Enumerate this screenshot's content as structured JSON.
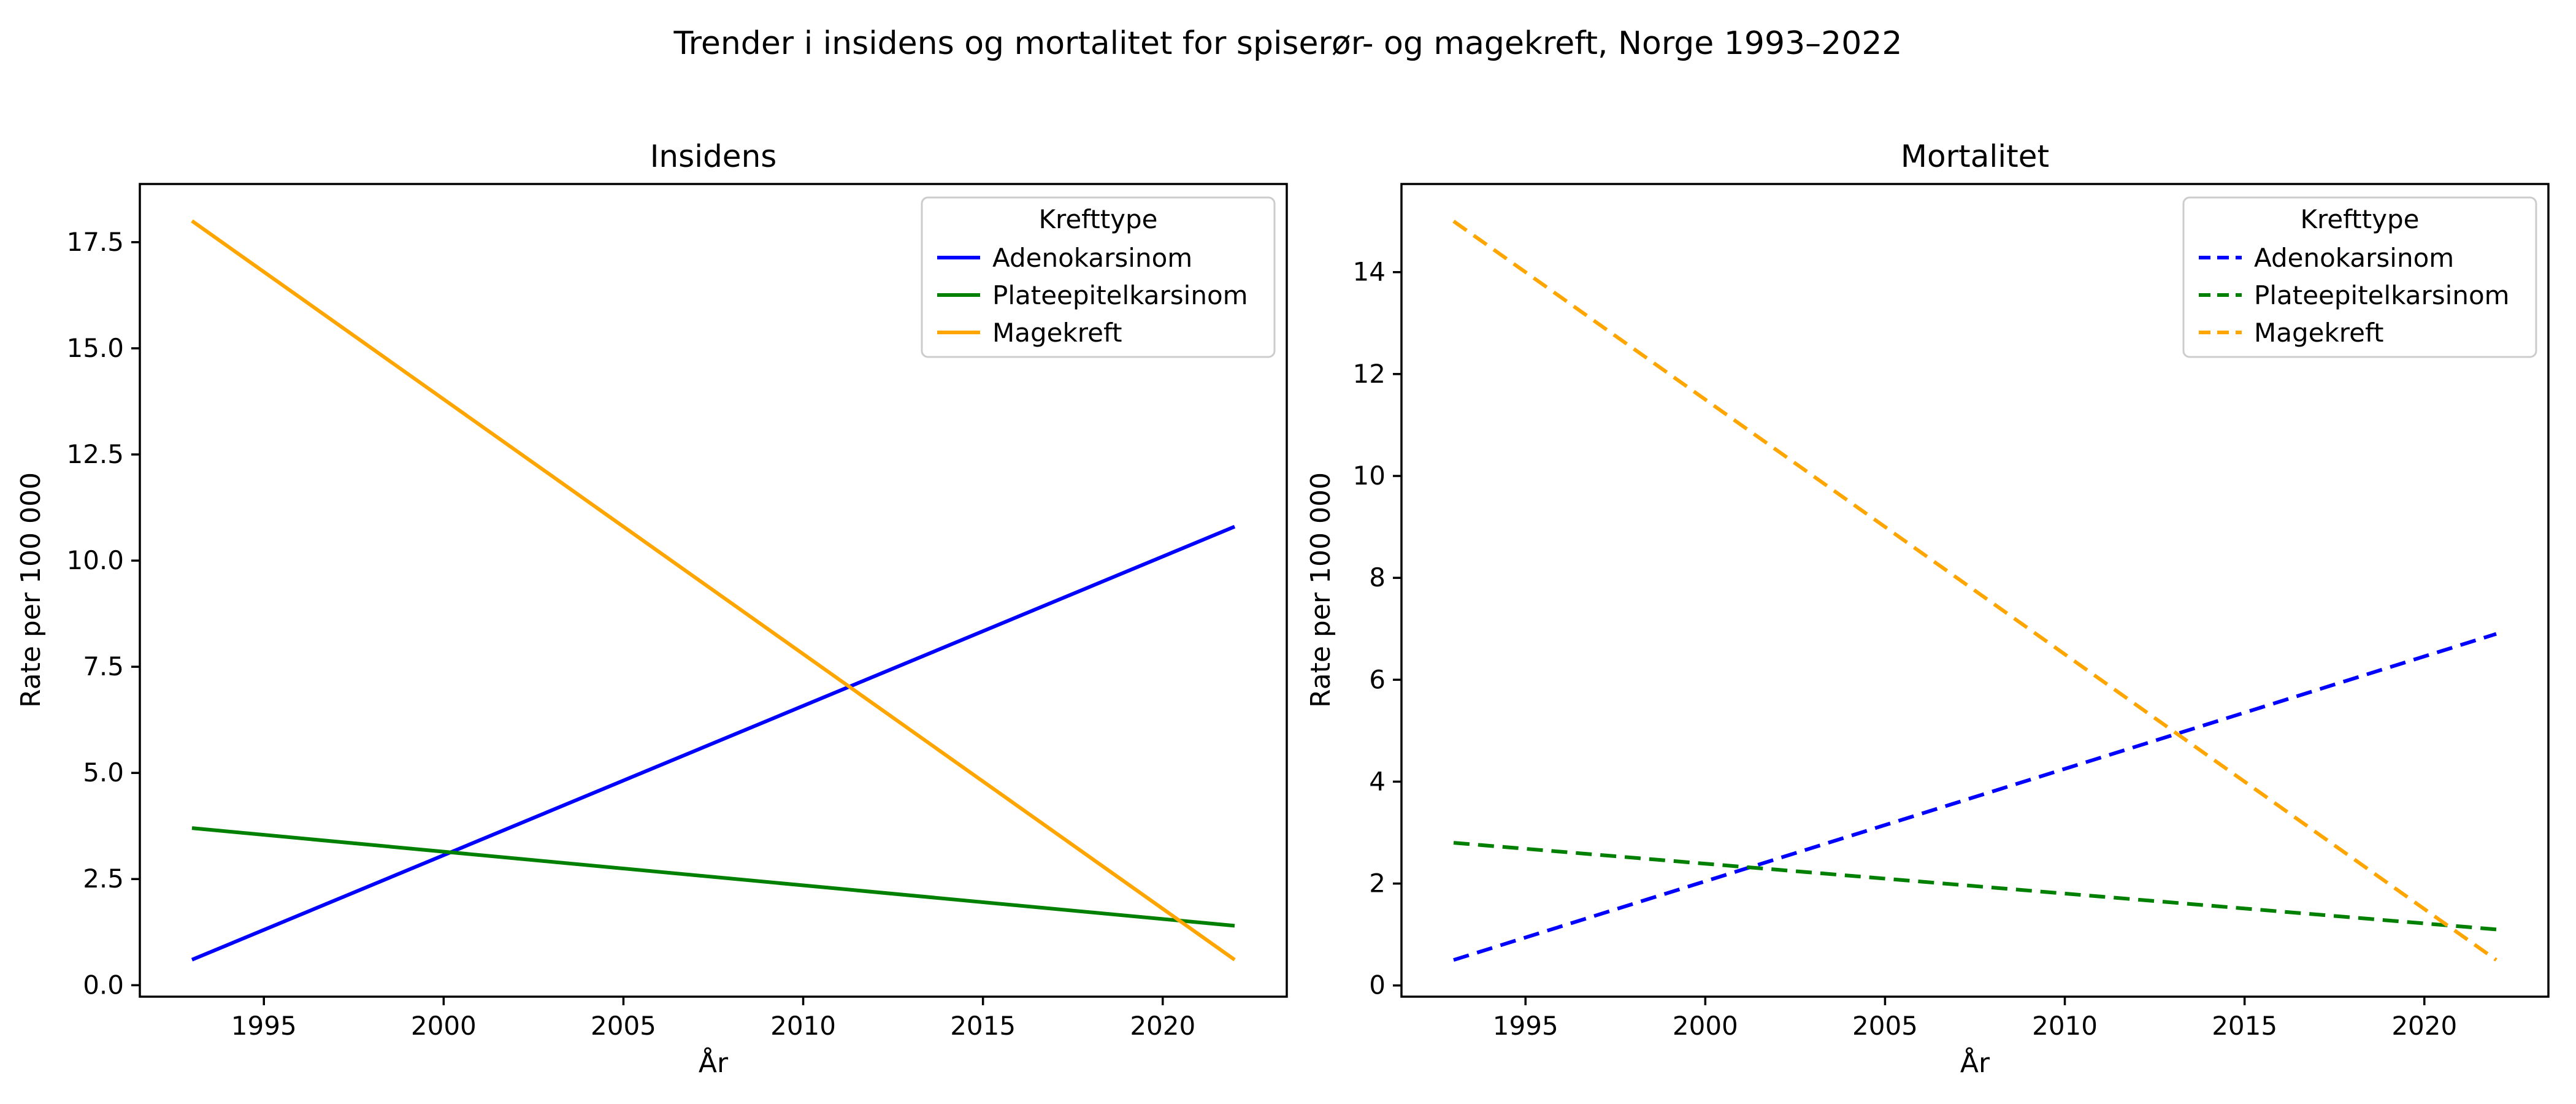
{
  "suptitle": "Trender i insidens og mortalitet for spiserør- og magekreft, Norge 1993–2022",
  "colors": {
    "adenokarsinom": "#0000ff",
    "plateepitelkarsinom": "#008000",
    "magekreft": "#ffa500",
    "legend_border": "#cccccc",
    "axis": "#000000"
  },
  "chart_data": [
    {
      "type": "line",
      "title": "Insidens",
      "xlabel": "År",
      "ylabel": "Rate per 100 000",
      "grid": false,
      "x": [
        1993,
        2022
      ],
      "xlim": [
        1991.55,
        2023.45
      ],
      "ylim": [
        -0.27,
        18.87
      ],
      "x_ticks": [
        1995,
        2000,
        2005,
        2010,
        2015,
        2020
      ],
      "x_tick_labels": [
        "1995",
        "2000",
        "2005",
        "2010",
        "2015",
        "2020"
      ],
      "y_ticks": [
        0,
        2.5,
        5,
        7.5,
        10,
        12.5,
        15,
        17.5
      ],
      "y_tick_labels": [
        "0.0",
        "2.5",
        "5.0",
        "7.5",
        "10.0",
        "12.5",
        "15.0",
        "17.5"
      ],
      "legend": {
        "title": "Krefttype",
        "position": "upper right"
      },
      "series": [
        {
          "name": "Adenokarsinom",
          "color": "#0000ff",
          "linestyle": "solid",
          "values": [
            0.6,
            10.8
          ]
        },
        {
          "name": "Plateepitelkarsinom",
          "color": "#008000",
          "linestyle": "solid",
          "values": [
            3.7,
            1.4
          ]
        },
        {
          "name": "Magekreft",
          "color": "#ffa500",
          "linestyle": "solid",
          "values": [
            18.0,
            0.6
          ]
        }
      ]
    },
    {
      "type": "line",
      "title": "Mortalitet",
      "xlabel": "År",
      "ylabel": "Rate per 100 000",
      "grid": false,
      "x": [
        1993,
        2022
      ],
      "xlim": [
        1991.55,
        2023.45
      ],
      "ylim": [
        -0.22,
        15.73
      ],
      "x_ticks": [
        1995,
        2000,
        2005,
        2010,
        2015,
        2020
      ],
      "x_tick_labels": [
        "1995",
        "2000",
        "2005",
        "2010",
        "2015",
        "2020"
      ],
      "y_ticks": [
        0,
        2,
        4,
        6,
        8,
        10,
        12,
        14
      ],
      "y_tick_labels": [
        "0",
        "2",
        "4",
        "6",
        "8",
        "10",
        "12",
        "14"
      ],
      "legend": {
        "title": "Krefttype",
        "position": "upper right"
      },
      "series": [
        {
          "name": "Adenokarsinom",
          "color": "#0000ff",
          "linestyle": "dashed",
          "values": [
            0.5,
            6.9
          ]
        },
        {
          "name": "Plateepitelkarsinom",
          "color": "#008000",
          "linestyle": "dashed",
          "values": [
            2.8,
            1.1
          ]
        },
        {
          "name": "Magekreft",
          "color": "#ffa500",
          "linestyle": "dashed",
          "values": [
            15.0,
            0.5
          ]
        }
      ]
    }
  ]
}
